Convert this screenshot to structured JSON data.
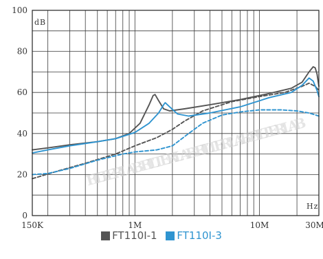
{
  "chart_data": {
    "type": "line",
    "x_scale": "log",
    "xlim": [
      150000,
      30000000
    ],
    "ylim": [
      0,
      100
    ],
    "y_ticks": [
      0,
      20,
      40,
      60,
      80,
      100
    ],
    "x_ticks": [
      {
        "value": 150000,
        "label": "150K"
      },
      {
        "value": 1000000,
        "label": "1M"
      },
      {
        "value": 10000000,
        "label": "10M"
      },
      {
        "value": 30000000,
        "label": "30M"
      }
    ],
    "y_unit": "dB",
    "x_unit": "Hz",
    "grid": true,
    "legend_position": "bottom-center",
    "watermark": "FILTERLAB",
    "series": [
      {
        "name": "FT110I-1",
        "color": "#555555",
        "style": "solid",
        "points": [
          [
            150000,
            32
          ],
          [
            200000,
            33
          ],
          [
            300000,
            34.5
          ],
          [
            500000,
            36
          ],
          [
            700000,
            37.5
          ],
          [
            900000,
            40
          ],
          [
            1100000,
            45
          ],
          [
            1300000,
            54
          ],
          [
            1400000,
            58.5
          ],
          [
            1450000,
            59
          ],
          [
            1550000,
            56
          ],
          [
            1700000,
            52
          ],
          [
            1900000,
            51
          ],
          [
            2500000,
            52
          ],
          [
            4000000,
            54
          ],
          [
            7000000,
            56.5
          ],
          [
            12000000,
            59.5
          ],
          [
            18000000,
            62
          ],
          [
            22000000,
            65
          ],
          [
            25000000,
            70
          ],
          [
            27000000,
            72.5
          ],
          [
            28000000,
            72
          ],
          [
            29000000,
            69
          ],
          [
            30000000,
            63
          ]
        ]
      },
      {
        "name": "FT110I-1",
        "color": "#555555",
        "style": "dashed",
        "points": [
          [
            150000,
            18
          ],
          [
            250000,
            22
          ],
          [
            400000,
            25.5
          ],
          [
            700000,
            30
          ],
          [
            1000000,
            34
          ],
          [
            1500000,
            38
          ],
          [
            2000000,
            42
          ],
          [
            2500000,
            46
          ],
          [
            3500000,
            51
          ],
          [
            6000000,
            55.5
          ],
          [
            10000000,
            58
          ],
          [
            16000000,
            60
          ],
          [
            22000000,
            63
          ],
          [
            25000000,
            64.5
          ],
          [
            28000000,
            63
          ],
          [
            30000000,
            61
          ]
        ]
      },
      {
        "name": "FT110I-3",
        "color": "#2f94d0",
        "style": "solid",
        "points": [
          [
            150000,
            30.5
          ],
          [
            200000,
            32
          ],
          [
            300000,
            34
          ],
          [
            500000,
            36
          ],
          [
            700000,
            37.5
          ],
          [
            1000000,
            40.5
          ],
          [
            1300000,
            45
          ],
          [
            1550000,
            50
          ],
          [
            1700000,
            54
          ],
          [
            1750000,
            55
          ],
          [
            1900000,
            53
          ],
          [
            2200000,
            49.5
          ],
          [
            2700000,
            48.5
          ],
          [
            4000000,
            50
          ],
          [
            7000000,
            53
          ],
          [
            12000000,
            57.5
          ],
          [
            18000000,
            60
          ],
          [
            22000000,
            63.5
          ],
          [
            25000000,
            67
          ],
          [
            27000000,
            65.5
          ],
          [
            29000000,
            61
          ],
          [
            30000000,
            58
          ]
        ]
      },
      {
        "name": "FT110I-3",
        "color": "#2f94d0",
        "style": "dashed",
        "points": [
          [
            150000,
            20
          ],
          [
            200000,
            20.5
          ],
          [
            300000,
            23
          ],
          [
            500000,
            27
          ],
          [
            800000,
            30
          ],
          [
            1000000,
            31
          ],
          [
            1500000,
            32
          ],
          [
            2000000,
            34
          ],
          [
            2700000,
            40
          ],
          [
            3500000,
            45
          ],
          [
            5000000,
            49
          ],
          [
            7000000,
            50.5
          ],
          [
            10000000,
            51.5
          ],
          [
            15000000,
            51.5
          ],
          [
            20000000,
            51
          ],
          [
            25000000,
            50
          ],
          [
            30000000,
            48.5
          ]
        ]
      }
    ]
  },
  "legend": [
    {
      "label": "FT110Ⅰ-1",
      "color": "#555555"
    },
    {
      "label": "FT110Ⅰ-3",
      "color": "#2f94d0"
    }
  ]
}
